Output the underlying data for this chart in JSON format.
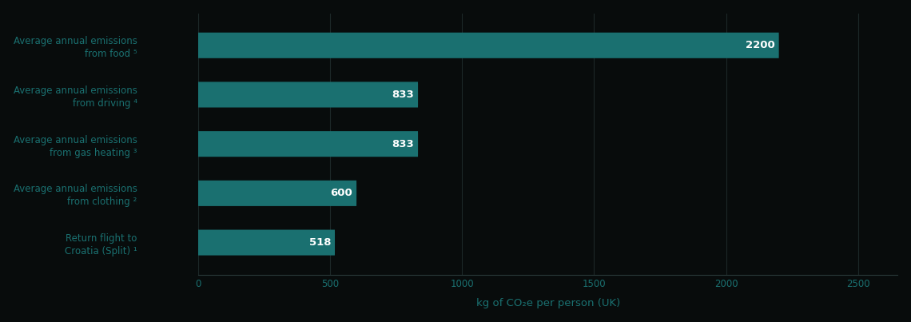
{
  "categories": [
    "Average annual emissions\nfrom food ⁵",
    "Average annual emissions\nfrom driving ⁴",
    "Average annual emissions\nfrom gas heating ³",
    "Average annual emissions\nfrom clothing ²",
    "Return flight to\nCroatia (Split) ¹"
  ],
  "values": [
    2200,
    833,
    833,
    600,
    518
  ],
  "bar_color": "#1a7070",
  "bar_label_color": "#ffffff",
  "label_color": "#1a7070",
  "tick_color": "#1a7070",
  "background_color": "#080c0c",
  "grid_color": "#1c2828",
  "xlabel": "kg of CO₂e per person (UK)",
  "xlim": [
    0,
    2650
  ],
  "xticks": [
    0,
    500,
    1000,
    1500,
    2000,
    2500
  ],
  "bar_height": 0.52,
  "label_fontsize": 8.5,
  "value_fontsize": 9.5,
  "xlabel_fontsize": 9.5
}
